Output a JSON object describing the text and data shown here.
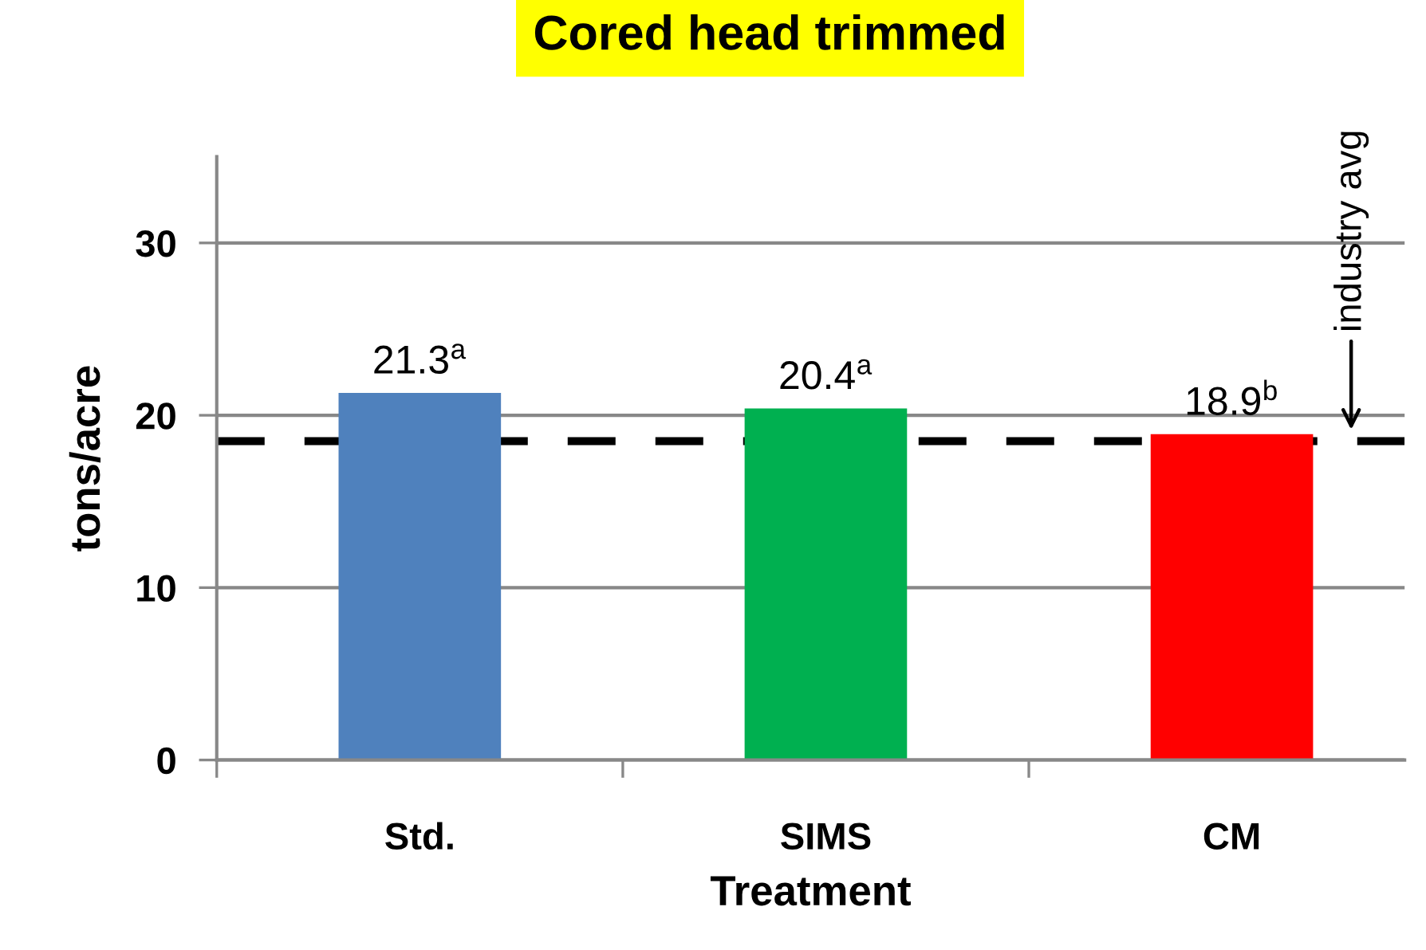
{
  "chart_data": {
    "type": "bar",
    "title": "Cored head trimmed",
    "xlabel": "Treatment",
    "ylabel": "tons/acre",
    "categories": [
      "Std.",
      "SIMS",
      "CM"
    ],
    "values": [
      21.3,
      20.4,
      18.9
    ],
    "colors": [
      "#4f81bd",
      "#00b050",
      "#ff0000"
    ],
    "value_labels": [
      "21.3$^{a}$",
      "20.4$^{a}$",
      "18.9$^{b}$"
    ],
    "ylim": [
      0,
      35
    ],
    "yticks": [
      0,
      10,
      20,
      30
    ],
    "grid": "y",
    "ref_lines": [
      {
        "axis": "y",
        "value": 18.5,
        "label": "industry avg",
        "color": "#000000",
        "line_style": "dashed"
      }
    ]
  }
}
